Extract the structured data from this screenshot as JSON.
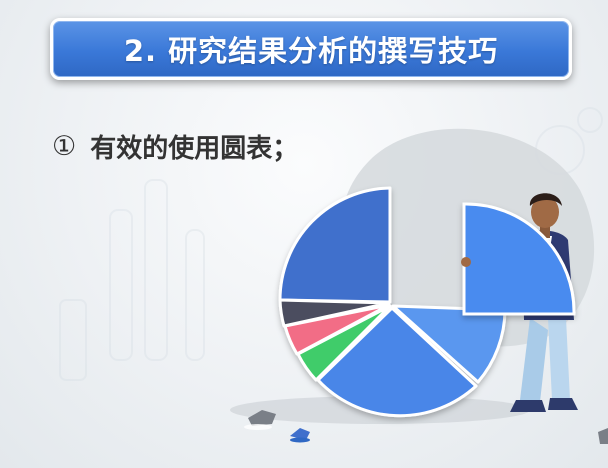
{
  "slide": {
    "title": "2. 研究结果分析的撰写技巧",
    "bullet_number": "①",
    "bullet_text": "有效的使用圆表；"
  },
  "colors": {
    "title_bar": "#3a78d8",
    "pie_blue_dark": "#3f6fcc",
    "pie_blue_mid": "#4a86e8",
    "pie_blue_light": "#5a97ef",
    "pie_green": "#3fcc6b",
    "pie_pink": "#f26d86",
    "pie_dark": "#4b4e5e"
  },
  "illustration": {
    "subject": "person holding a pie chart slice",
    "slices": [
      "blue-dark",
      "blue-light",
      "blue-mid",
      "green",
      "pink",
      "dark-gray",
      "extracted-blue"
    ]
  }
}
